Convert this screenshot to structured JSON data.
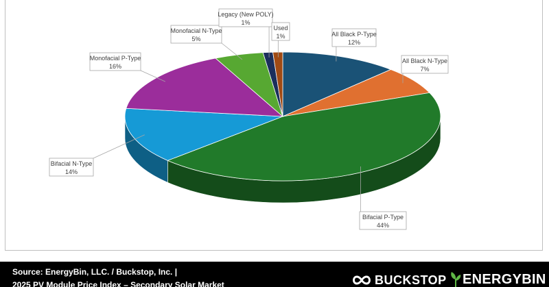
{
  "chart_data": {
    "type": "pie",
    "style": "3d",
    "slices": [
      {
        "label": "All Black P-Type",
        "value": 12,
        "display": "12%",
        "color": "#1a5276"
      },
      {
        "label": "All Black N-Type",
        "value": 7,
        "display": "7%",
        "color": "#e07030"
      },
      {
        "label": "Bifacial P-Type",
        "value": 44,
        "display": "44%",
        "color": "#217a2a"
      },
      {
        "label": "Bifacial N-Type",
        "value": 14,
        "display": "14%",
        "color": "#169ad6"
      },
      {
        "label": "Monofacial P-Type",
        "value": 16,
        "display": "16%",
        "color": "#9b2d9b"
      },
      {
        "label": "Monofacial N-Type",
        "value": 5,
        "display": "5%",
        "color": "#57a832"
      },
      {
        "label": "Legacy (New POLY)",
        "value": 1,
        "display": "1%",
        "color": "#1b2f5c"
      },
      {
        "label": "Used",
        "value": 1,
        "display": "1%",
        "color": "#a04a14"
      }
    ]
  },
  "footer": {
    "source_line1": "Source: EnergyBin, LLC. / Buckstop, Inc. |",
    "source_line2": "2025 PV Module Price Index – Secondary Solar Market",
    "logo_buckstop": "BUCKSTOP",
    "logo_energybin": "ENERGYBIN"
  },
  "colors": {
    "footer_bg": "#000000",
    "leaf_green": "#5fb846"
  },
  "icons": [
    "infinity-logo-icon",
    "leaf-logo-icon"
  ]
}
